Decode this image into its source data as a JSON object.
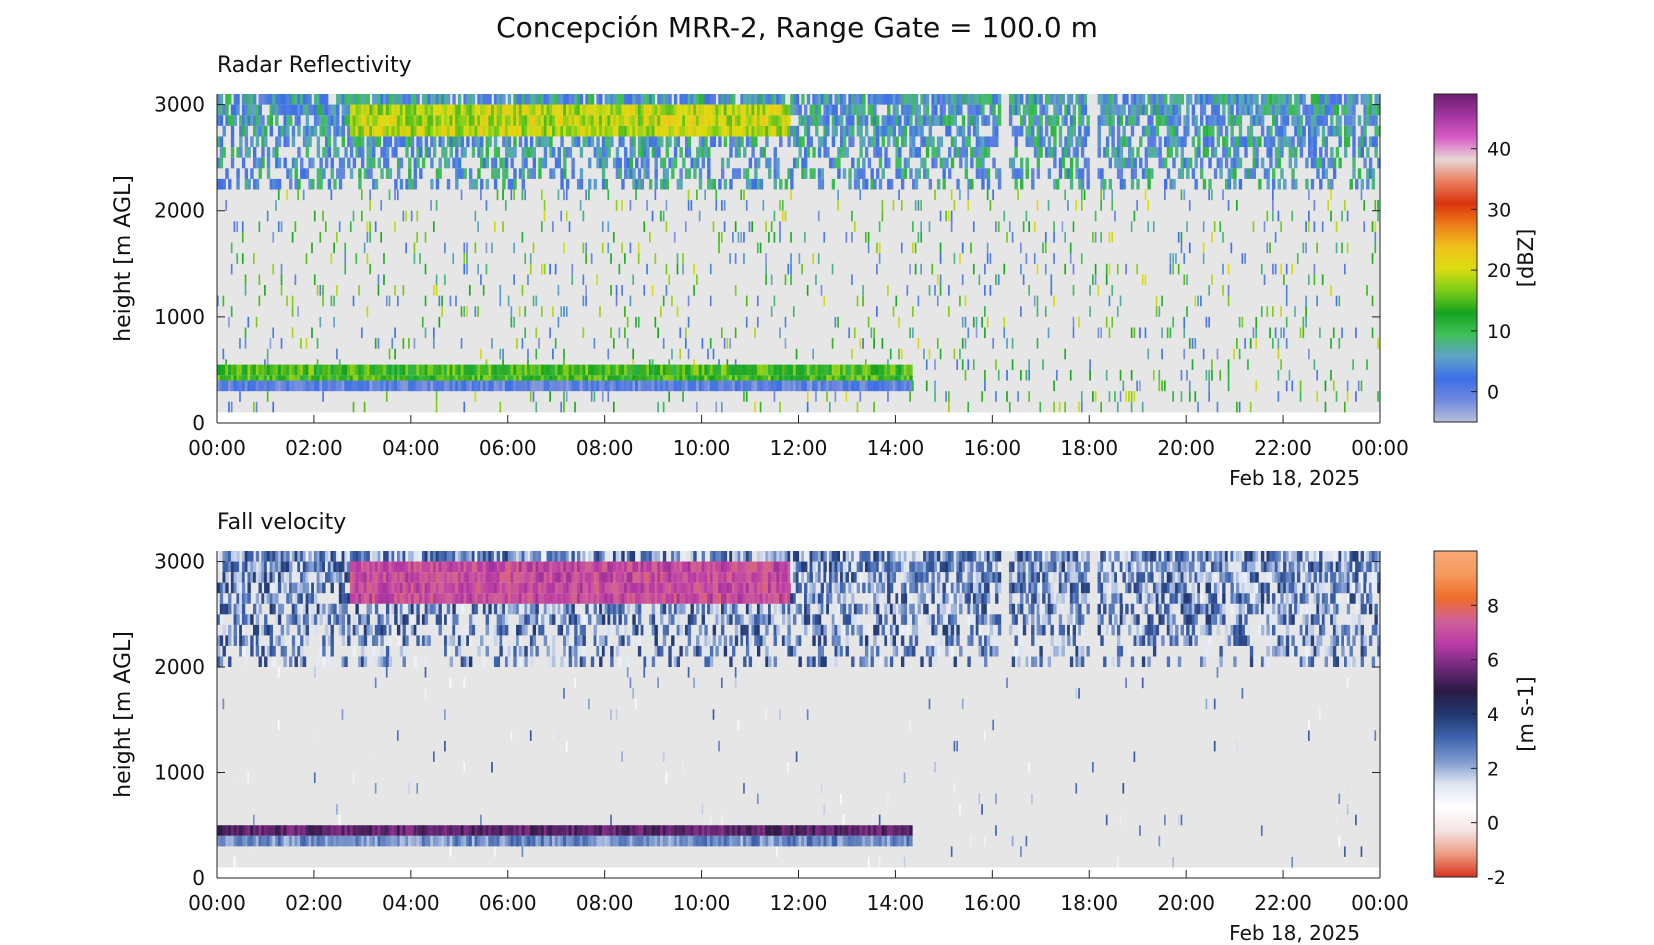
{
  "figure": {
    "title": "Concepción MRR-2, Range Gate = 100.0 m"
  },
  "chart_data": [
    {
      "type": "heatmap",
      "title": "Radar Reflectivity",
      "xlabel": "",
      "date_label": "Feb 18, 2025",
      "ylabel": "height [m AGL]",
      "x_ticks": [
        "00:00",
        "02:00",
        "04:00",
        "06:00",
        "08:00",
        "10:00",
        "12:00",
        "14:00",
        "16:00",
        "18:00",
        "20:00",
        "22:00",
        "00:00"
      ],
      "xlim_hours": [
        0,
        24
      ],
      "y_ticks": [
        0,
        1000,
        2000,
        3000
      ],
      "ylim": [
        0,
        3100
      ],
      "colorbar": {
        "label": "[dBZ]",
        "range": [
          -5,
          49
        ],
        "ticks": [
          0,
          10,
          20,
          30,
          40
        ],
        "colors": [
          "#b7bfdc",
          "#6f88df",
          "#3e6fe6",
          "#5fa3c8",
          "#3fbf58",
          "#16a31f",
          "#7acc1a",
          "#dcdc10",
          "#eec21a",
          "#ee7e1a",
          "#d9340e",
          "#ea7d5e",
          "#e8d7d7",
          "#d85cc4",
          "#a335a3",
          "#6b1e6e"
        ]
      },
      "features": [
        {
          "kind": "bright-band",
          "t_start": 0.0,
          "t_end": 14.3,
          "h_bottom": 350,
          "h_top": 500,
          "dbz_mean": 14
        },
        {
          "kind": "low-noise-band",
          "t_start": 0.0,
          "t_end": 14.3,
          "h_bottom": 300,
          "h_top": 350,
          "dbz_mean": 0
        },
        {
          "kind": "upper-echo-layer",
          "t_start": 2.7,
          "t_end": 11.8,
          "h_bottom": 2700,
          "h_top": 2950,
          "dbz_mean": 19
        },
        {
          "kind": "upper-noise-layer",
          "t_start": 0.0,
          "t_end": 24.0,
          "h_bottom": 2200,
          "h_top": 3100,
          "dbz_mean": 5
        },
        {
          "kind": "data-gap",
          "t_start": 16.15,
          "t_end": 16.3,
          "h_bottom": 2000,
          "h_top": 3100
        },
        {
          "kind": "data-gap",
          "t_start": 18.0,
          "t_end": 18.15,
          "h_bottom": 2000,
          "h_top": 3100
        }
      ]
    },
    {
      "type": "heatmap",
      "title": "Fall velocity",
      "xlabel": "",
      "date_label": "Feb 18, 2025",
      "ylabel": "height [m AGL]",
      "x_ticks": [
        "00:00",
        "02:00",
        "04:00",
        "06:00",
        "08:00",
        "10:00",
        "12:00",
        "14:00",
        "16:00",
        "18:00",
        "20:00",
        "22:00",
        "00:00"
      ],
      "xlim_hours": [
        0,
        24
      ],
      "y_ticks": [
        0,
        1000,
        2000,
        3000
      ],
      "ylim": [
        0,
        3100
      ],
      "colorbar": {
        "label": "[m s-1]",
        "range": [
          -2,
          10
        ],
        "ticks": [
          -2,
          0,
          2,
          4,
          6,
          8
        ],
        "colors": [
          "#d7341d",
          "#ee9d84",
          "#f5e3e3",
          "#ffffff",
          "#dde4f2",
          "#7b97cc",
          "#3e63ad",
          "#22386e",
          "#2a1a44",
          "#6f2a7a",
          "#b93aa7",
          "#d06098",
          "#ef6d2b",
          "#f59a5c",
          "#f8a877"
        ]
      },
      "features": [
        {
          "kind": "melting-layer",
          "t_start": 0.0,
          "t_end": 14.3,
          "h_bottom": 400,
          "h_top": 480,
          "v_mean": 5.5
        },
        {
          "kind": "slow-band",
          "t_start": 0.0,
          "t_end": 14.3,
          "h_bottom": 300,
          "h_top": 400,
          "v_mean": 2.5
        },
        {
          "kind": "fast-upper-layer",
          "t_start": 2.7,
          "t_end": 11.8,
          "h_bottom": 2600,
          "h_top": 2950,
          "v_mean": 7.0
        },
        {
          "kind": "upper-noise-layer",
          "t_start": 0.0,
          "t_end": 24.0,
          "h_bottom": 2000,
          "h_top": 3100,
          "v_mean": 2.5
        },
        {
          "kind": "data-gap",
          "t_start": 16.15,
          "t_end": 16.3,
          "h_bottom": 2000,
          "h_top": 3100
        },
        {
          "kind": "data-gap",
          "t_start": 18.0,
          "t_end": 18.15,
          "h_bottom": 2000,
          "h_top": 3100
        }
      ]
    }
  ]
}
